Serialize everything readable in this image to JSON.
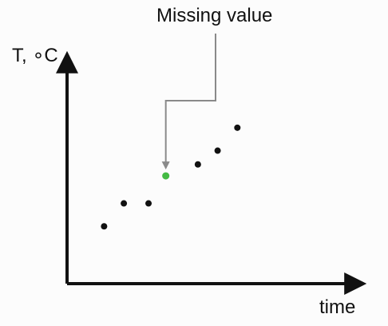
{
  "chart_data": {
    "type": "scatter",
    "title": "",
    "xlabel": "time",
    "ylabel": "T, ∘C",
    "grid": false,
    "legend": "none",
    "xlim": [
      0,
      12
    ],
    "ylim": [
      0,
      10
    ],
    "points": [
      {
        "x": 1.5,
        "y": 2.5,
        "missing": false
      },
      {
        "x": 2.3,
        "y": 3.5,
        "missing": false
      },
      {
        "x": 3.3,
        "y": 3.5,
        "missing": false
      },
      {
        "x": 4.0,
        "y": 4.7,
        "missing": true
      },
      {
        "x": 5.3,
        "y": 5.2,
        "missing": false
      },
      {
        "x": 6.1,
        "y": 5.8,
        "missing": false
      },
      {
        "x": 6.9,
        "y": 6.8,
        "missing": false
      }
    ],
    "annotation": {
      "text": "Missing value",
      "target_index": 3
    },
    "colors": {
      "point": "#111111",
      "missing_point": "#44bb44",
      "axis": "#111111",
      "leader": "#8a8a8a"
    }
  }
}
